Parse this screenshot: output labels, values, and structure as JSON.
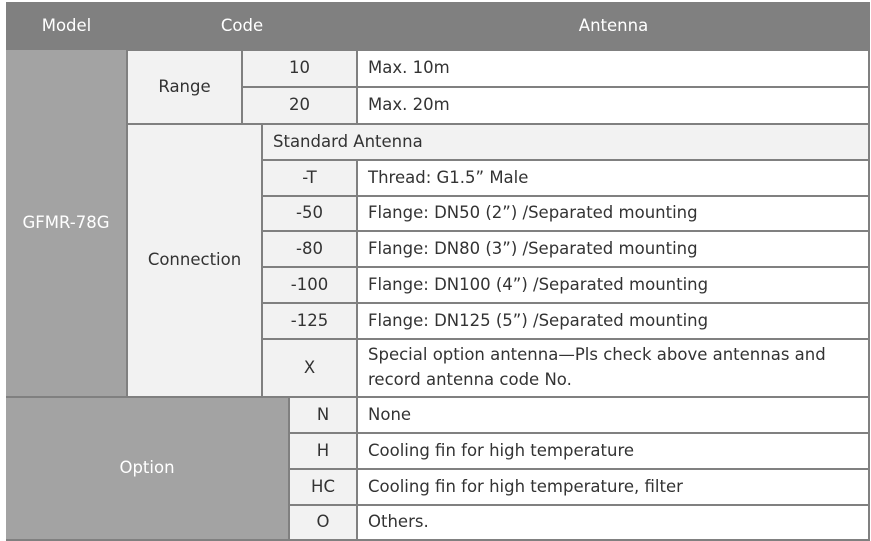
{
  "header": {
    "model": "Model",
    "code": "Code",
    "antenna": "Antenna"
  },
  "model": "GFMR-78G",
  "range": {
    "label": "Range",
    "rows": [
      {
        "code": "10",
        "desc": "Max. 10m"
      },
      {
        "code": "20",
        "desc": "Max. 20m"
      }
    ]
  },
  "connection": {
    "label": "Connection",
    "subheader": "Standard Antenna",
    "rows": [
      {
        "code": "-T",
        "desc": "Thread: G1.5” Male"
      },
      {
        "code": "-50",
        "desc": "Flange: DN50 (2”) /Separated mounting"
      },
      {
        "code": "-80",
        "desc": "Flange: DN80 (3”) /Separated mounting"
      },
      {
        "code": "-100",
        "desc": "Flange: DN100 (4”) /Separated mounting"
      },
      {
        "code": "-125",
        "desc": "Flange: DN125 (5”) /Separated mounting"
      },
      {
        "code": "X",
        "desc": "Special option antenna—Pls check above antennas and record antenna code No."
      }
    ]
  },
  "option": {
    "label": "Option",
    "rows": [
      {
        "code": "N",
        "desc": "None"
      },
      {
        "code": "H",
        "desc": "Cooling fin for high temperature"
      },
      {
        "code": "HC",
        "desc": "Cooling fin for high temperature, filter"
      },
      {
        "code": "O",
        "desc": "Others."
      }
    ]
  }
}
